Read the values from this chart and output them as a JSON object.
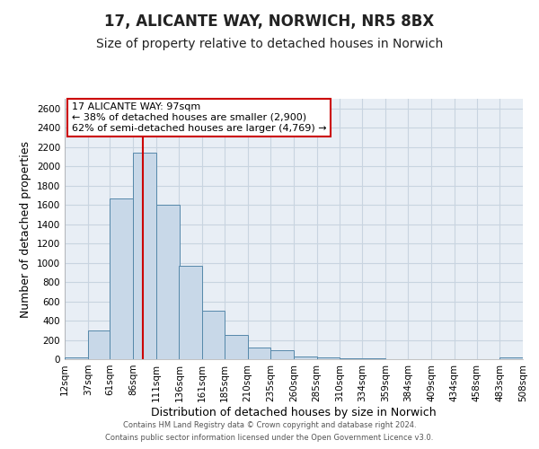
{
  "title": "17, ALICANTE WAY, NORWICH, NR5 8BX",
  "subtitle": "Size of property relative to detached houses in Norwich",
  "xlabel": "Distribution of detached houses by size in Norwich",
  "ylabel": "Number of detached properties",
  "bin_edges": [
    12,
    37,
    61,
    86,
    111,
    136,
    161,
    185,
    210,
    235,
    260,
    285,
    310,
    334,
    359,
    384,
    409,
    434,
    458,
    483,
    508
  ],
  "bin_labels": [
    "12sqm",
    "37sqm",
    "61sqm",
    "86sqm",
    "111sqm",
    "136sqm",
    "161sqm",
    "185sqm",
    "210sqm",
    "235sqm",
    "260sqm",
    "285sqm",
    "310sqm",
    "334sqm",
    "359sqm",
    "384sqm",
    "409sqm",
    "434sqm",
    "458sqm",
    "483sqm",
    "508sqm"
  ],
  "bar_heights": [
    20,
    295,
    1670,
    2140,
    1600,
    965,
    505,
    250,
    120,
    95,
    30,
    15,
    8,
    5,
    3,
    3,
    2,
    2,
    2,
    20
  ],
  "bar_color": "#c8d8e8",
  "bar_edgecolor": "#5588aa",
  "ylim": [
    0,
    2700
  ],
  "yticks": [
    0,
    200,
    400,
    600,
    800,
    1000,
    1200,
    1400,
    1600,
    1800,
    2000,
    2200,
    2400,
    2600
  ],
  "property_line_x": 97,
  "property_line_color": "#cc0000",
  "annotation_title": "17 ALICANTE WAY: 97sqm",
  "annotation_line1": "← 38% of detached houses are smaller (2,900)",
  "annotation_line2": "62% of semi-detached houses are larger (4,769) →",
  "annotation_box_color": "#ffffff",
  "annotation_box_edgecolor": "#cc0000",
  "footnote1": "Contains HM Land Registry data © Crown copyright and database right 2024.",
  "footnote2": "Contains public sector information licensed under the Open Government Licence v3.0.",
  "background_color": "#ffffff",
  "plot_bg_color": "#e8eef5",
  "grid_color": "#c8d4e0",
  "title_fontsize": 12,
  "subtitle_fontsize": 10,
  "axis_label_fontsize": 9,
  "tick_fontsize": 7.5,
  "annotation_fontsize": 8,
  "footnote_fontsize": 6
}
